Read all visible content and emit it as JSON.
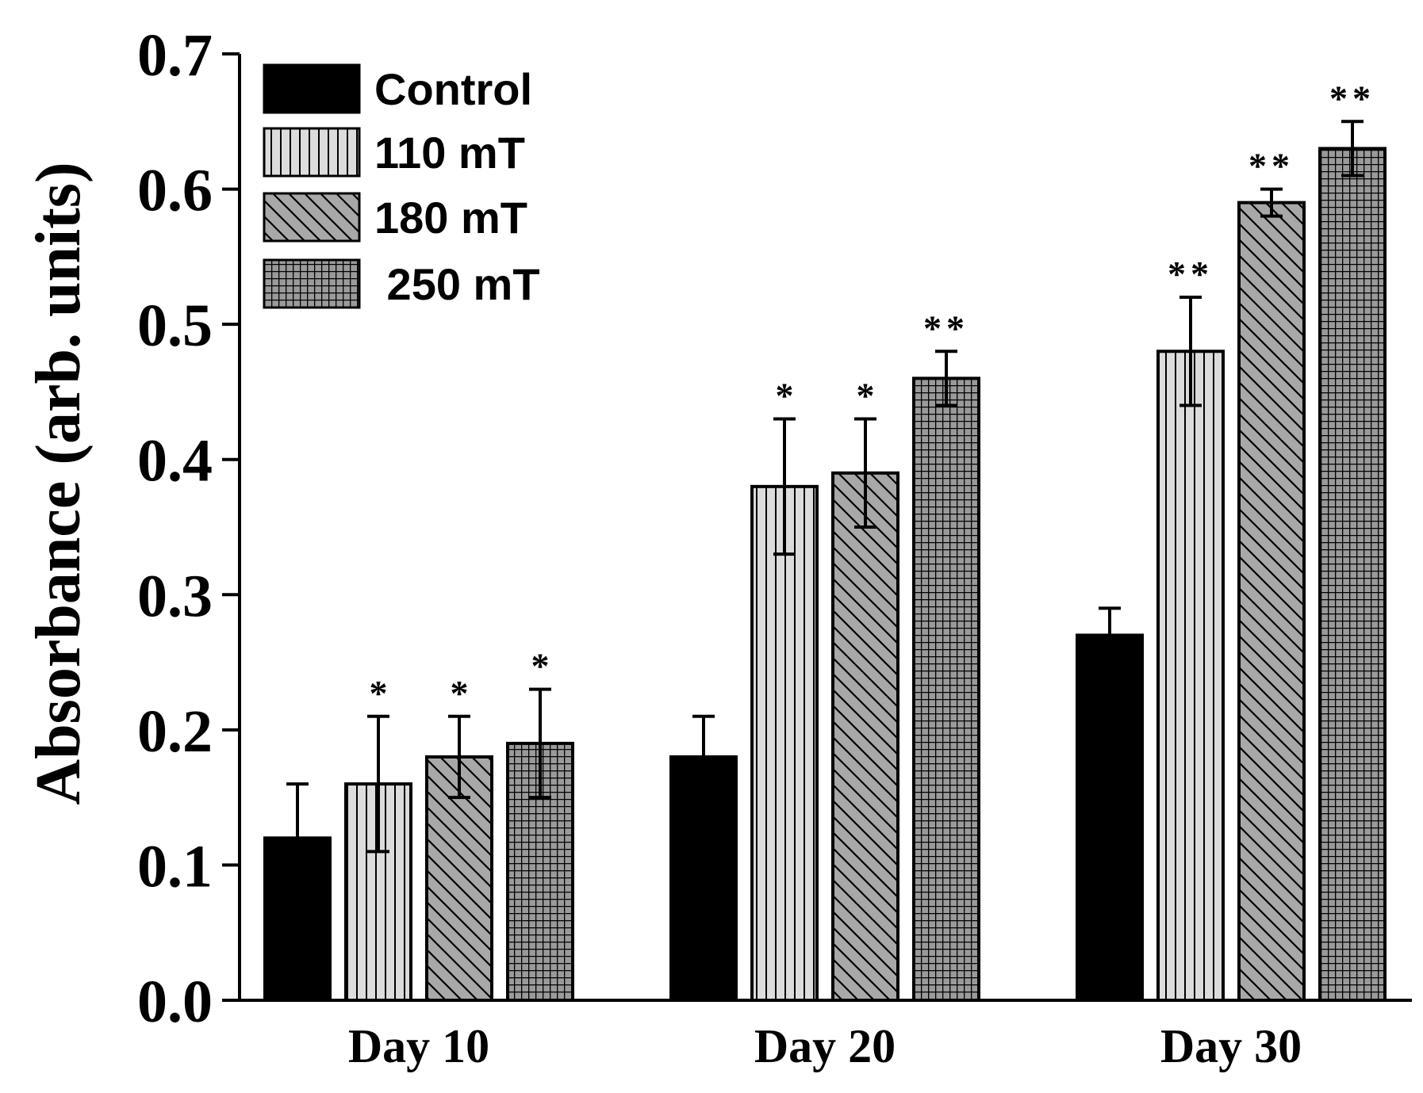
{
  "chart_data": {
    "type": "bar",
    "xlabel": "",
    "ylabel": "Absorbance (arb. units)",
    "ylim": [
      0.0,
      0.7
    ],
    "yticks": [
      "0.0",
      "0.1",
      "0.2",
      "0.3",
      "0.4",
      "0.5",
      "0.6",
      "0.7"
    ],
    "categories": [
      "Day 10",
      "Day 20",
      "Day 30"
    ],
    "grid": false,
    "legend_position": "top-left",
    "series": [
      {
        "name": "Control",
        "legend_label": "Control",
        "pattern": "solid-black",
        "values": [
          0.12,
          0.18,
          0.27
        ],
        "errors": [
          0.04,
          0.03,
          0.02
        ],
        "significance": [
          "",
          "",
          ""
        ]
      },
      {
        "name": "110 mT",
        "legend_label": "110 mT",
        "pattern": "vertical-lines",
        "values": [
          0.16,
          0.38,
          0.48
        ],
        "errors": [
          0.05,
          0.05,
          0.04
        ],
        "significance": [
          "*",
          "*",
          "**"
        ]
      },
      {
        "name": "180 mT",
        "legend_label": "180 mT",
        "pattern": "diagonal-lines",
        "values": [
          0.18,
          0.39,
          0.59
        ],
        "errors": [
          0.03,
          0.04,
          0.01
        ],
        "significance": [
          "*",
          "*",
          "**"
        ]
      },
      {
        "name": "250 mT",
        "legend_label": " 250 mT",
        "pattern": "crosshatch-grid",
        "values": [
          0.19,
          0.46,
          0.63
        ],
        "errors": [
          0.04,
          0.02,
          0.02
        ],
        "significance": [
          "*",
          "**",
          "**"
        ]
      }
    ],
    "colors": {
      "control_fill": "#000000",
      "v110_fill": "#dcdcdc",
      "d180_fill": "#a8a8a8",
      "g250_fill": "#9a9a9a",
      "stroke": "#000000"
    }
  }
}
